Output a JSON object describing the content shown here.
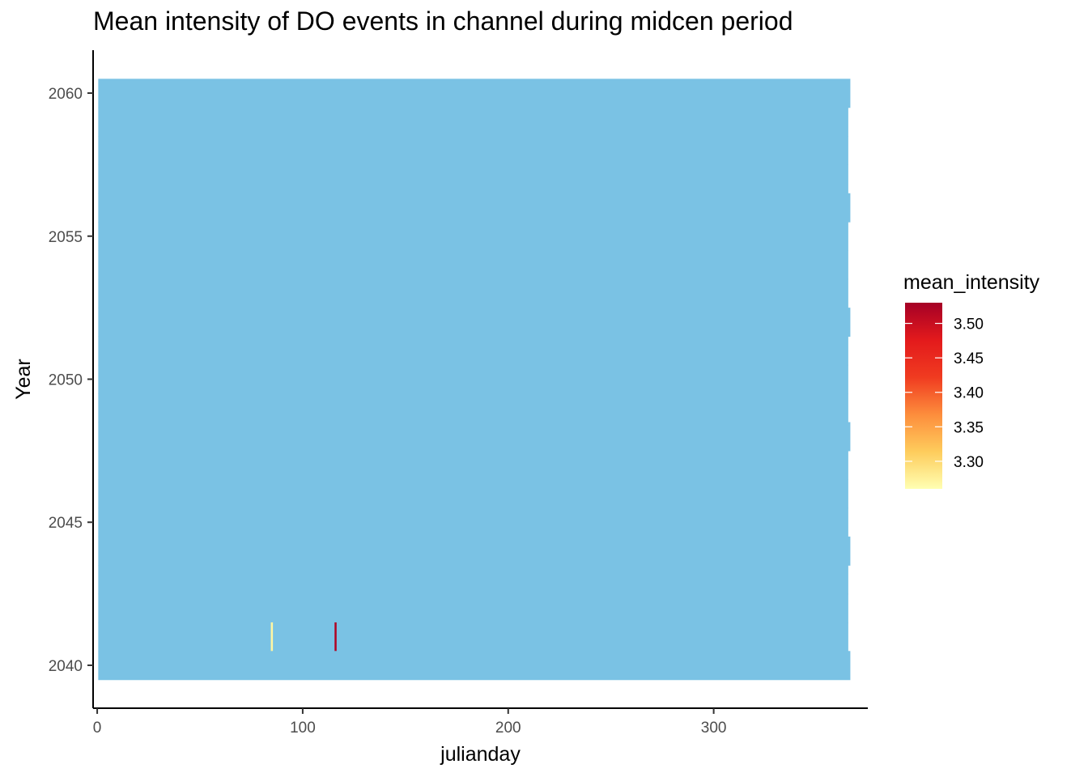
{
  "chart_data": {
    "type": "heatmap",
    "title": "Mean intensity of DO events in channel during midcen period",
    "xlabel": "julianday",
    "ylabel": "Year",
    "xlim": [
      -2,
      375
    ],
    "ylim": [
      2038.5,
      2061.5
    ],
    "x_ticks": [
      0,
      100,
      200,
      300
    ],
    "y_ticks": [
      2040,
      2045,
      2050,
      2055,
      2060
    ],
    "background_tile": {
      "color": "#7AC2E4",
      "x_range": [
        1,
        366
      ],
      "leap_years": [
        2040,
        2044,
        2048,
        2052,
        2056,
        2060
      ],
      "year_range": [
        2040,
        2060
      ]
    },
    "events": [
      {
        "year": 2041,
        "julianday": 85,
        "mean_intensity": 3.27
      },
      {
        "year": 2041,
        "julianday": 116,
        "mean_intensity": 3.52
      }
    ],
    "legend": {
      "title": "mean_intensity",
      "min": 3.26,
      "max": 3.53,
      "breaks": [
        3.3,
        3.35,
        3.4,
        3.45,
        3.5
      ],
      "labels": [
        "3.30",
        "3.35",
        "3.40",
        "3.45",
        "3.50"
      ],
      "colors": [
        "#FFFFB2",
        "#FECC5C",
        "#FD8D3C",
        "#F03B20",
        "#E31A1C",
        "#A50026"
      ],
      "position": "right"
    },
    "grid": false
  }
}
